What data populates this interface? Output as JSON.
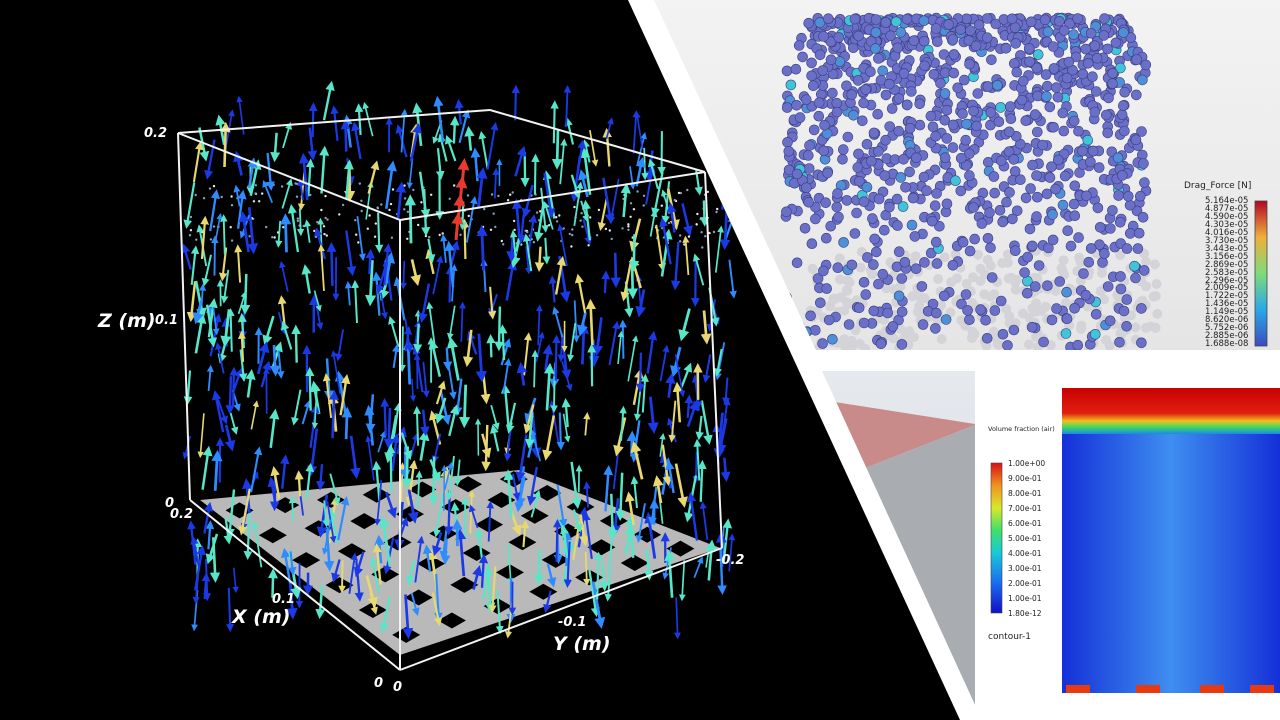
{
  "left_plot": {
    "axis_labels": {
      "z": "Z (m)",
      "x": "X (m)",
      "y": "Y (m)"
    },
    "z_ticks": [
      "0.2",
      "0.1",
      "0"
    ],
    "x_ticks": [
      "0.2",
      "0.1",
      "0"
    ],
    "y_ticks": [
      "-0.2",
      "-0.1"
    ],
    "colors": {
      "arrow_dark": "#1c39e6",
      "arrow_mid": "#2f8cff",
      "arrow_light": "#57e6c8",
      "arrow_warm": "#e8d870",
      "arrow_hot": "#e63b2e"
    }
  },
  "drag_panel": {
    "legend_title": "Drag_Force [N]",
    "legend_ticks": [
      "5.164e-05",
      "4.877e-05",
      "4.590e-05",
      "4.303e-05",
      "4.016e-05",
      "3.730e-05",
      "3.443e-05",
      "3.156e-05",
      "2.869e-05",
      "2.583e-05",
      "2.296e-05",
      "2.009e-05",
      "1.722e-05",
      "1.436e-05",
      "1.149e-05",
      "8.620e-06",
      "5.752e-06",
      "2.885e-06",
      "1.688e-08"
    ],
    "particle_color": "#6a6fc8"
  },
  "volume_fraction_panel": {
    "legend_title": "Volume fraction (air)",
    "legend_ticks": [
      "1.00e+00",
      "9.00e-01",
      "8.00e-01",
      "7.00e-01",
      "6.00e-01",
      "5.00e-01",
      "4.00e-01",
      "3.00e-01",
      "2.00e-01",
      "1.00e-01",
      "1.80e-12"
    ],
    "contour_label": "contour-1"
  }
}
